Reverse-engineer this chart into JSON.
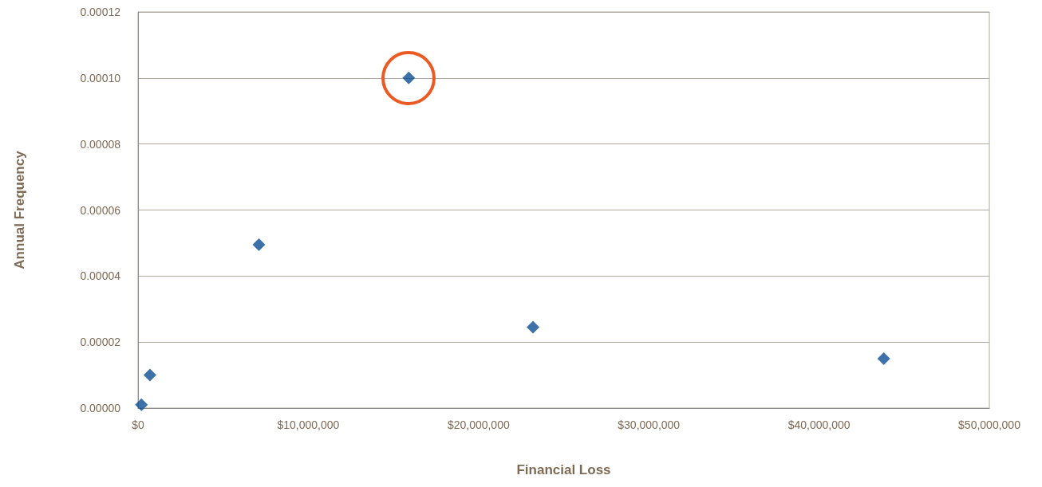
{
  "chart_data": {
    "type": "scatter",
    "xlabel": "Financial Loss",
    "ylabel": "Annual Frequency",
    "x": [
      200000,
      700000,
      7100000,
      15900000,
      23200000,
      43800000
    ],
    "values": [
      1e-06,
      1e-05,
      4.95e-05,
      0.0001,
      2.45e-05,
      1.5e-05
    ],
    "color": "#0b4f94",
    "marker": "diamond",
    "grid": "y",
    "xlim": [
      0,
      50000000
    ],
    "xticks": [
      {
        "value": 0,
        "label": "$0"
      },
      {
        "value": 10000000,
        "label": "$10,000,000"
      },
      {
        "value": 20000000,
        "label": "$20,000,000"
      },
      {
        "value": 30000000,
        "label": "$30,000,000"
      },
      {
        "value": 40000000,
        "label": "$40,000,000"
      },
      {
        "value": 50000000,
        "label": "$50,000,000"
      }
    ],
    "ylim": [
      0,
      0.00012
    ],
    "yticks": [
      {
        "value": 0,
        "label": "0.00000"
      },
      {
        "value": 2e-05,
        "label": "0.00002"
      },
      {
        "value": 4e-05,
        "label": "0.00004"
      },
      {
        "value": 6e-05,
        "label": "0.00006"
      },
      {
        "value": 8e-05,
        "label": "0.00008"
      },
      {
        "value": 0.0001,
        "label": "0.00010"
      },
      {
        "value": 0.00012,
        "label": "0.00012"
      }
    ]
  }
}
